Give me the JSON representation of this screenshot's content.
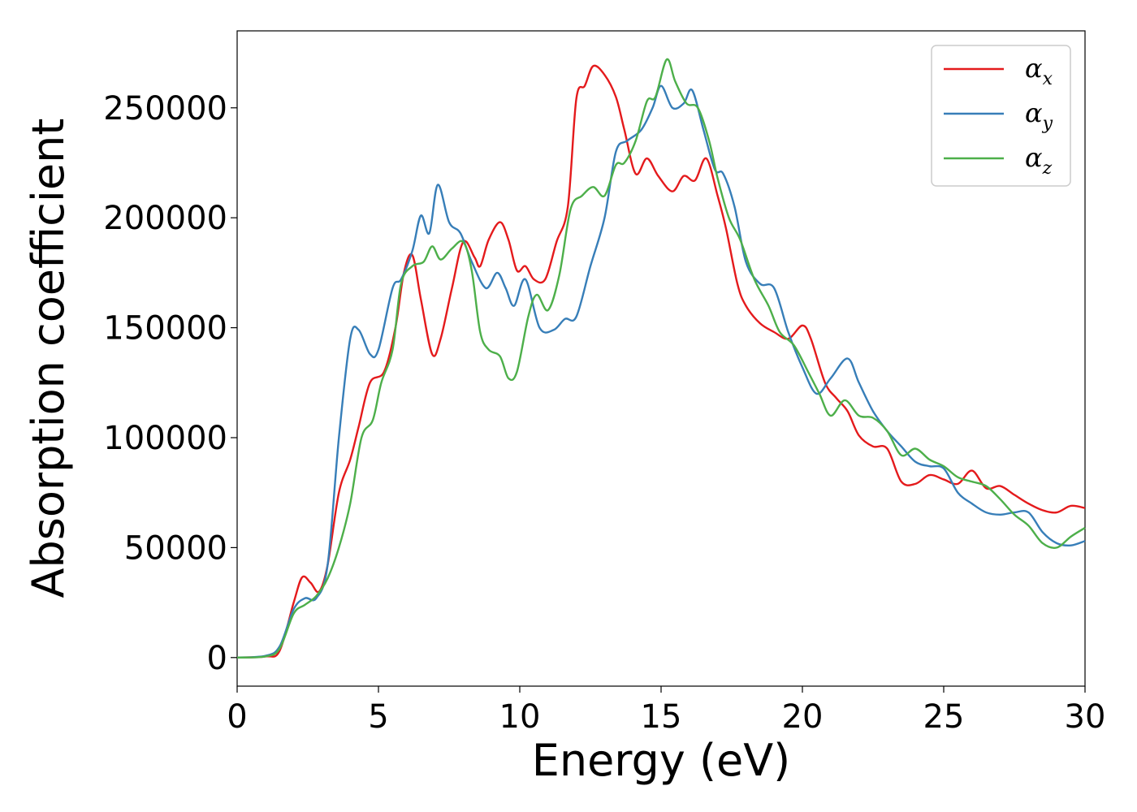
{
  "chart_data": {
    "type": "line",
    "title": "",
    "xlabel": "Energy (eV)",
    "ylabel": "Absorption coefficient",
    "xlim": [
      0,
      30
    ],
    "ylim": [
      -13000,
      285000
    ],
    "xticks": [
      0,
      5,
      10,
      15,
      20,
      25,
      30
    ],
    "xtick_labels": [
      "0",
      "5",
      "10",
      "15",
      "20",
      "25",
      "30"
    ],
    "yticks": [
      0,
      50000,
      100000,
      150000,
      200000,
      250000
    ],
    "ytick_labels": [
      "0",
      "50000",
      "100000",
      "150000",
      "200000",
      "250000"
    ],
    "grid": false,
    "legend_position": "top-right",
    "series": [
      {
        "name": "αx",
        "name_base": "α",
        "name_sub": "x",
        "color": "#e41a1c",
        "points": [
          [
            0,
            0
          ],
          [
            1,
            500
          ],
          [
            1.5,
            3000
          ],
          [
            2,
            25000
          ],
          [
            2.3,
            36500
          ],
          [
            2.6,
            34000
          ],
          [
            2.9,
            30000
          ],
          [
            3.2,
            42000
          ],
          [
            3.6,
            75000
          ],
          [
            4,
            90000
          ],
          [
            4.3,
            105000
          ],
          [
            4.7,
            125000
          ],
          [
            5.2,
            130000
          ],
          [
            5.6,
            150000
          ],
          [
            5.9,
            175000
          ],
          [
            6.2,
            183000
          ],
          [
            6.5,
            163000
          ],
          [
            6.9,
            138000
          ],
          [
            7.2,
            145000
          ],
          [
            7.6,
            168000
          ],
          [
            8,
            189000
          ],
          [
            8.4,
            182000
          ],
          [
            8.6,
            178000
          ],
          [
            8.9,
            190000
          ],
          [
            9.3,
            198000
          ],
          [
            9.6,
            190000
          ],
          [
            9.9,
            176000
          ],
          [
            10.2,
            178000
          ],
          [
            10.5,
            172000
          ],
          [
            10.9,
            172000
          ],
          [
            11.3,
            189000
          ],
          [
            11.7,
            205000
          ],
          [
            12,
            254000
          ],
          [
            12.3,
            260000
          ],
          [
            12.6,
            269000
          ],
          [
            13,
            265000
          ],
          [
            13.4,
            255000
          ],
          [
            13.7,
            240000
          ],
          [
            14.1,
            220000
          ],
          [
            14.5,
            227000
          ],
          [
            14.9,
            219000
          ],
          [
            15.4,
            212000
          ],
          [
            15.8,
            219000
          ],
          [
            16.2,
            217000
          ],
          [
            16.6,
            227000
          ],
          [
            17,
            210000
          ],
          [
            17.3,
            195000
          ],
          [
            17.7,
            170000
          ],
          [
            18,
            160000
          ],
          [
            18.5,
            152000
          ],
          [
            19,
            148000
          ],
          [
            19.5,
            145000
          ],
          [
            20,
            151000
          ],
          [
            20.3,
            145000
          ],
          [
            20.8,
            125000
          ],
          [
            21.2,
            118000
          ],
          [
            21.6,
            112000
          ],
          [
            22,
            101000
          ],
          [
            22.5,
            96000
          ],
          [
            23,
            95000
          ],
          [
            23.5,
            80000
          ],
          [
            24,
            79000
          ],
          [
            24.5,
            83000
          ],
          [
            25,
            81000
          ],
          [
            25.5,
            79000
          ],
          [
            26,
            85000
          ],
          [
            26.5,
            77000
          ],
          [
            27,
            78000
          ],
          [
            27.5,
            74000
          ],
          [
            28,
            70000
          ],
          [
            28.5,
            67000
          ],
          [
            29,
            66000
          ],
          [
            29.5,
            69000
          ],
          [
            30,
            68000
          ]
        ]
      },
      {
        "name": "αy",
        "name_base": "α",
        "name_sub": "y",
        "color": "#377eb8",
        "points": [
          [
            0,
            0
          ],
          [
            1,
            800
          ],
          [
            1.5,
            5000
          ],
          [
            2,
            22000
          ],
          [
            2.4,
            27000
          ],
          [
            2.8,
            27000
          ],
          [
            3.2,
            42000
          ],
          [
            3.6,
            100000
          ],
          [
            4,
            145000
          ],
          [
            4.3,
            149000
          ],
          [
            4.7,
            138000
          ],
          [
            5,
            140000
          ],
          [
            5.5,
            168000
          ],
          [
            5.8,
            172000
          ],
          [
            6.2,
            185000
          ],
          [
            6.5,
            201000
          ],
          [
            6.8,
            193000
          ],
          [
            7.1,
            215000
          ],
          [
            7.5,
            198000
          ],
          [
            7.9,
            193000
          ],
          [
            8.3,
            180000
          ],
          [
            8.8,
            168000
          ],
          [
            9.2,
            175000
          ],
          [
            9.5,
            168000
          ],
          [
            9.8,
            160000
          ],
          [
            10.2,
            172000
          ],
          [
            10.7,
            150000
          ],
          [
            11.2,
            149000
          ],
          [
            11.6,
            154000
          ],
          [
            12,
            155000
          ],
          [
            12.5,
            178000
          ],
          [
            13,
            200000
          ],
          [
            13.4,
            230000
          ],
          [
            13.8,
            235000
          ],
          [
            14.3,
            240000
          ],
          [
            14.7,
            250000
          ],
          [
            15,
            260000
          ],
          [
            15.4,
            250000
          ],
          [
            15.8,
            252000
          ],
          [
            16.1,
            258000
          ],
          [
            16.5,
            240000
          ],
          [
            16.9,
            222000
          ],
          [
            17.2,
            220000
          ],
          [
            17.6,
            205000
          ],
          [
            18,
            180000
          ],
          [
            18.5,
            170000
          ],
          [
            19,
            168000
          ],
          [
            19.5,
            148000
          ],
          [
            20,
            132000
          ],
          [
            20.5,
            120000
          ],
          [
            21,
            127000
          ],
          [
            21.6,
            136000
          ],
          [
            22,
            125000
          ],
          [
            22.5,
            112000
          ],
          [
            23,
            103000
          ],
          [
            23.5,
            96000
          ],
          [
            24,
            89000
          ],
          [
            24.5,
            87000
          ],
          [
            25,
            86000
          ],
          [
            25.5,
            75000
          ],
          [
            26,
            70000
          ],
          [
            26.5,
            66000
          ],
          [
            27,
            65000
          ],
          [
            27.5,
            66000
          ],
          [
            28,
            66000
          ],
          [
            28.5,
            57000
          ],
          [
            29,
            52000
          ],
          [
            29.5,
            51000
          ],
          [
            30,
            53000
          ]
        ]
      },
      {
        "name": "αz",
        "name_base": "α",
        "name_sub": "z",
        "color": "#4daf4a",
        "points": [
          [
            0,
            0
          ],
          [
            1,
            500
          ],
          [
            1.5,
            4000
          ],
          [
            2,
            20000
          ],
          [
            2.4,
            24000
          ],
          [
            2.8,
            28000
          ],
          [
            3.2,
            36000
          ],
          [
            3.6,
            50000
          ],
          [
            4,
            70000
          ],
          [
            4.4,
            100000
          ],
          [
            4.8,
            108000
          ],
          [
            5.1,
            125000
          ],
          [
            5.5,
            140000
          ],
          [
            5.8,
            170000
          ],
          [
            6.2,
            178000
          ],
          [
            6.6,
            180000
          ],
          [
            6.9,
            187000
          ],
          [
            7.2,
            181000
          ],
          [
            7.6,
            186000
          ],
          [
            8,
            189000
          ],
          [
            8.3,
            176000
          ],
          [
            8.6,
            148000
          ],
          [
            8.9,
            140000
          ],
          [
            9.3,
            137000
          ],
          [
            9.6,
            127000
          ],
          [
            9.9,
            130000
          ],
          [
            10.3,
            155000
          ],
          [
            10.6,
            165000
          ],
          [
            11,
            158000
          ],
          [
            11.4,
            174000
          ],
          [
            11.8,
            204000
          ],
          [
            12.2,
            210000
          ],
          [
            12.6,
            214000
          ],
          [
            13,
            210000
          ],
          [
            13.4,
            224000
          ],
          [
            13.7,
            225000
          ],
          [
            14.1,
            235000
          ],
          [
            14.5,
            253000
          ],
          [
            14.8,
            255000
          ],
          [
            15.2,
            272000
          ],
          [
            15.5,
            262000
          ],
          [
            15.9,
            252000
          ],
          [
            16.3,
            250000
          ],
          [
            16.7,
            235000
          ],
          [
            17,
            218000
          ],
          [
            17.4,
            200000
          ],
          [
            17.8,
            190000
          ],
          [
            18.3,
            172000
          ],
          [
            18.8,
            160000
          ],
          [
            19.2,
            148000
          ],
          [
            19.7,
            142000
          ],
          [
            20.2,
            130000
          ],
          [
            20.6,
            120000
          ],
          [
            21,
            110000
          ],
          [
            21.5,
            117000
          ],
          [
            22,
            110000
          ],
          [
            22.5,
            109000
          ],
          [
            23,
            103000
          ],
          [
            23.5,
            92000
          ],
          [
            24,
            95000
          ],
          [
            24.5,
            90000
          ],
          [
            25,
            87000
          ],
          [
            25.5,
            82000
          ],
          [
            26,
            80000
          ],
          [
            26.5,
            78000
          ],
          [
            27,
            72000
          ],
          [
            27.5,
            65000
          ],
          [
            28,
            60000
          ],
          [
            28.5,
            52000
          ],
          [
            29,
            50000
          ],
          [
            29.5,
            55000
          ],
          [
            30,
            59000
          ]
        ]
      }
    ]
  }
}
